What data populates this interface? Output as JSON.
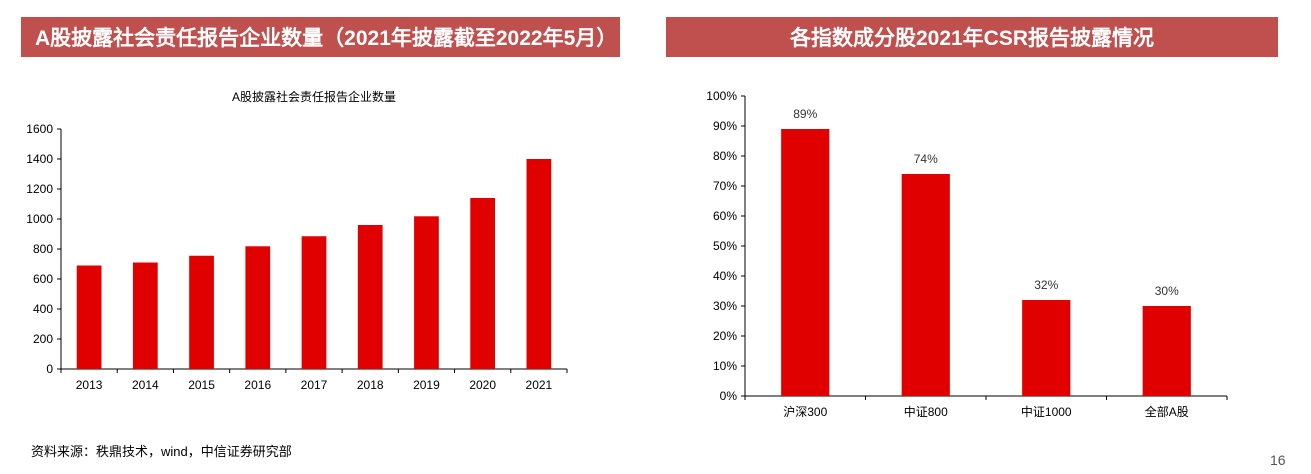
{
  "left_panel": {
    "banner_title": "A股披露社会责任报告企业数量（2021年披露截至2022年5月）"
  },
  "right_panel": {
    "banner_title": "各指数成分股2021年CSR报告披露情况"
  },
  "footer": {
    "source": "资料来源：秩鼎技术，wind，中信证券研究部",
    "page_number": "16"
  },
  "colors": {
    "banner": "#c0504d",
    "bar": "#e00000"
  },
  "chart_data": [
    {
      "type": "bar",
      "title": "A股披露社会责任报告企业数量",
      "categories": [
        "2013",
        "2014",
        "2015",
        "2016",
        "2017",
        "2018",
        "2019",
        "2020",
        "2021"
      ],
      "values": [
        690,
        710,
        755,
        818,
        885,
        960,
        1018,
        1140,
        1400
      ],
      "ylim": [
        0,
        1600
      ],
      "yticks": [
        0,
        200,
        400,
        600,
        800,
        1000,
        1200,
        1400,
        1600
      ],
      "grid": false,
      "data_labels": false
    },
    {
      "type": "bar",
      "title": "",
      "categories": [
        "沪深300",
        "中证800",
        "中证1000",
        "全部A股"
      ],
      "values": [
        89,
        74,
        32,
        30
      ],
      "value_labels": [
        "89%",
        "74%",
        "32%",
        "30%"
      ],
      "ylim": [
        0,
        100
      ],
      "yticks": [
        0,
        10,
        20,
        30,
        40,
        50,
        60,
        70,
        80,
        90,
        100
      ],
      "ytick_suffix": "%",
      "grid": false,
      "data_labels": true
    }
  ]
}
